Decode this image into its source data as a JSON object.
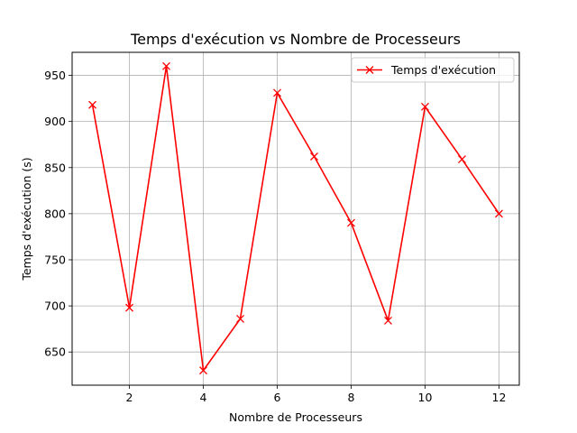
{
  "chart_data": {
    "type": "line",
    "title": "Temps d'exécution vs Nombre de Processeurs",
    "xlabel": "Nombre de Processeurs",
    "ylabel": "Temps d'exécution (s)",
    "xlim": [
      0.45,
      12.55
    ],
    "ylim": [
      614,
      975
    ],
    "xticks": [
      2,
      4,
      6,
      8,
      10,
      12
    ],
    "yticks": [
      650,
      700,
      750,
      800,
      850,
      900,
      950
    ],
    "grid": true,
    "legend_position": "top-right",
    "series": [
      {
        "name": "Temps d'exécution",
        "color": "#ff0000",
        "marker": "x",
        "x": [
          1,
          2,
          3,
          4,
          5,
          6,
          7,
          8,
          9,
          10,
          11,
          12
        ],
        "y": [
          918,
          698,
          960,
          630,
          686,
          931,
          862,
          790,
          684,
          916,
          859,
          800
        ]
      }
    ]
  }
}
